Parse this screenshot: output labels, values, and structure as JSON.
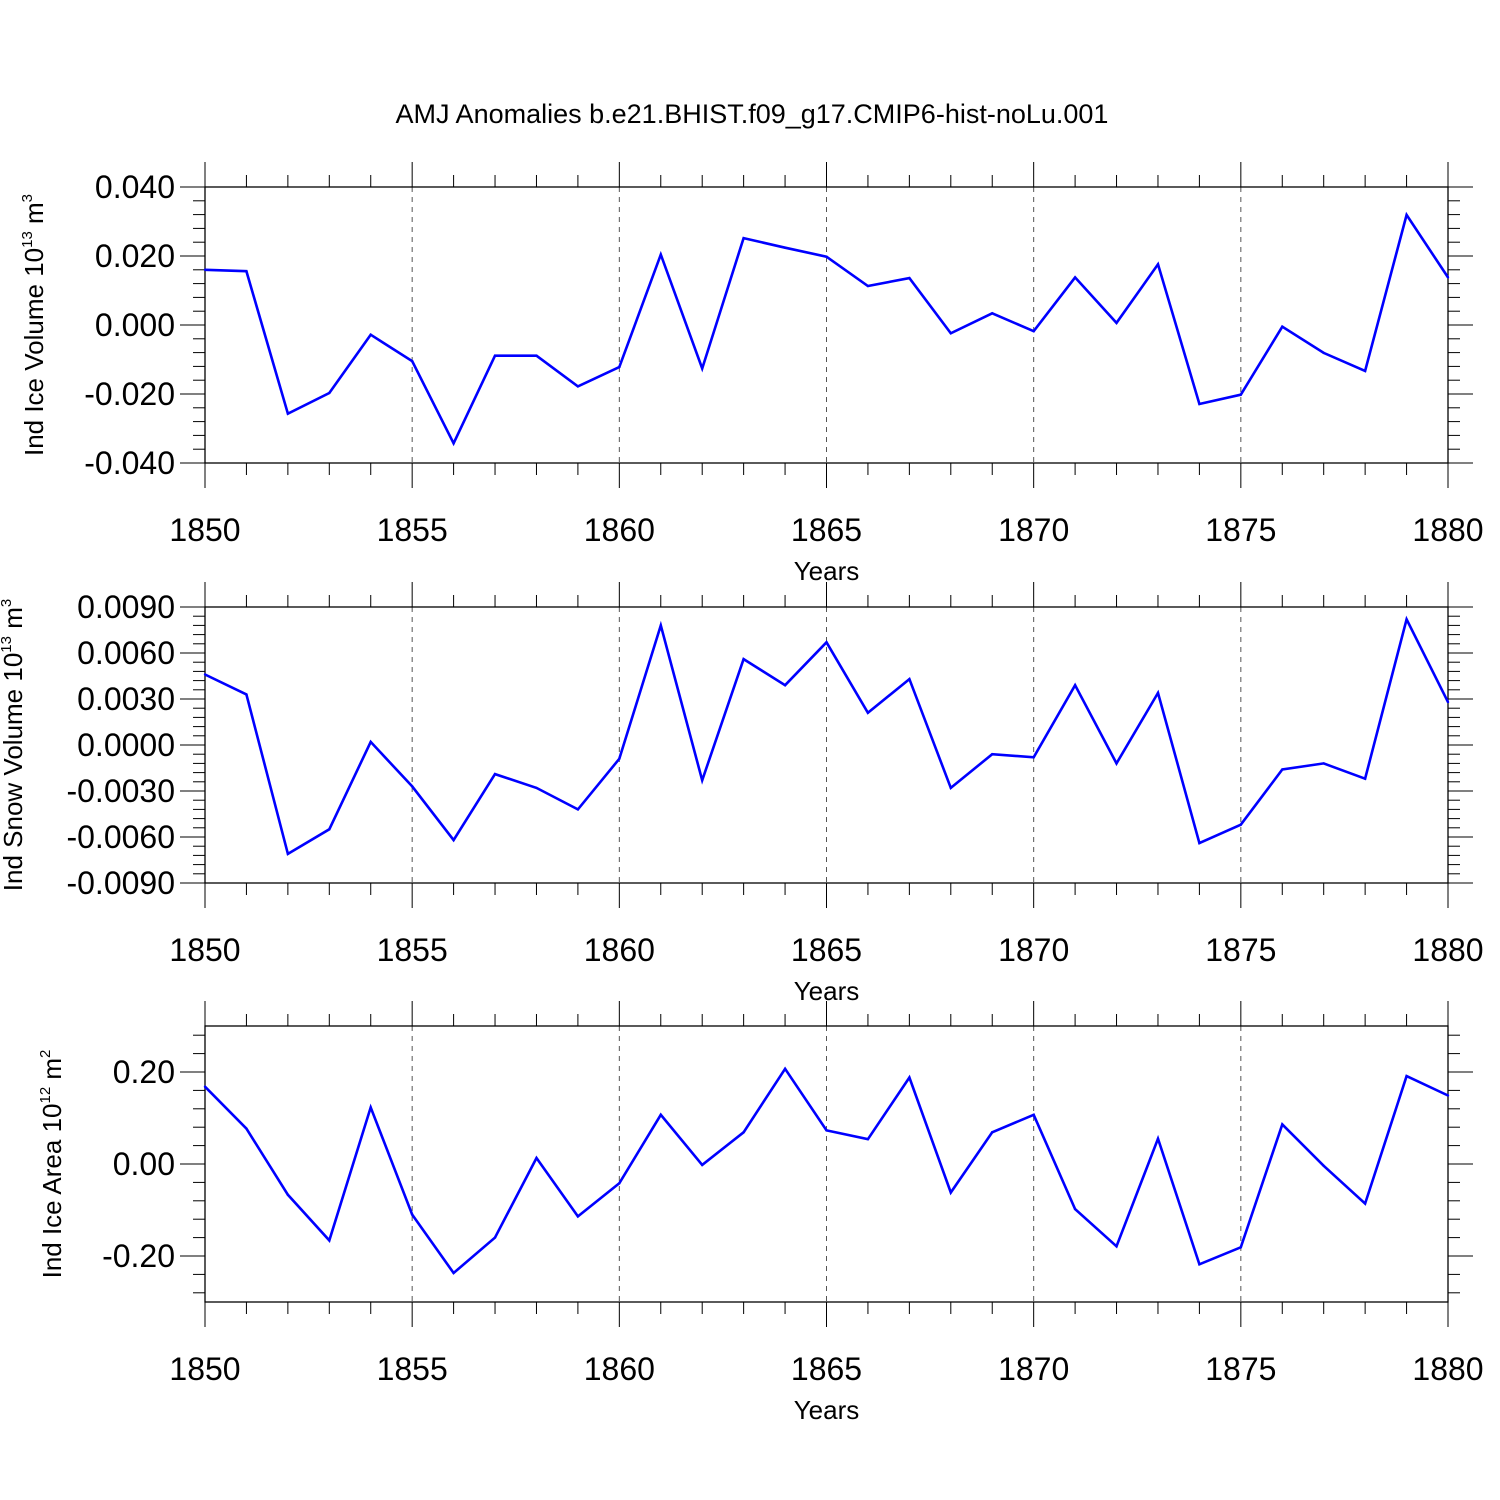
{
  "figure": {
    "title": "AMJ Anomalies b.e21.BHIST.f09_g17.CMIP6-hist-noLu.001"
  },
  "chart_data": [
    {
      "type": "line",
      "title": "",
      "xlabel": "Years",
      "ylabel_parts": [
        "Ind Ice Volume 10",
        "13",
        " m",
        "3"
      ],
      "xlim": [
        1850,
        1880
      ],
      "ylim": [
        -0.04,
        0.04
      ],
      "xticks": [
        "1850",
        "1855",
        "1860",
        "1865",
        "1870",
        "1875",
        "1880"
      ],
      "yticks": [
        {
          "value": 0.04,
          "label": "0.040"
        },
        {
          "value": 0.02,
          "label": "0.020"
        },
        {
          "value": 0.0,
          "label": "0.000"
        },
        {
          "value": -0.02,
          "label": "-0.020"
        },
        {
          "value": -0.04,
          "label": "-0.040"
        }
      ],
      "x": [
        1850,
        1851,
        1852,
        1853,
        1854,
        1855,
        1856,
        1857,
        1858,
        1859,
        1860,
        1861,
        1862,
        1863,
        1864,
        1865,
        1866,
        1867,
        1868,
        1869,
        1870,
        1871,
        1872,
        1873,
        1874,
        1875,
        1876,
        1877,
        1878,
        1879,
        1880
      ],
      "series": [
        {
          "name": "Ind Ice Volume",
          "color": "#0000ff",
          "values": [
            0.016,
            0.0156,
            -0.0257,
            -0.0197,
            -0.0028,
            -0.0105,
            -0.0343,
            -0.0089,
            -0.0089,
            -0.0178,
            -0.0122,
            0.0204,
            -0.0126,
            0.0252,
            0.0224,
            0.0198,
            0.0113,
            0.0136,
            -0.0024,
            0.0034,
            -0.0018,
            0.0138,
            0.0006,
            0.0176,
            -0.0229,
            -0.0202,
            -0.0005,
            -0.0081,
            -0.0133,
            0.0319,
            0.0138
          ]
        }
      ]
    },
    {
      "type": "line",
      "title": "",
      "xlabel": "Years",
      "ylabel_parts": [
        "Ind Snow Volume 10",
        "13",
        " m",
        "3"
      ],
      "xlim": [
        1850,
        1880
      ],
      "ylim": [
        -0.009,
        0.009
      ],
      "xticks": [
        "1850",
        "1855",
        "1860",
        "1865",
        "1870",
        "1875",
        "1880"
      ],
      "yticks": [
        {
          "value": 0.009,
          "label": "0.0090"
        },
        {
          "value": 0.006,
          "label": "0.0060"
        },
        {
          "value": 0.003,
          "label": "0.0030"
        },
        {
          "value": 0.0,
          "label": "0.0000"
        },
        {
          "value": -0.003,
          "label": "-0.0030"
        },
        {
          "value": -0.006,
          "label": "-0.0060"
        },
        {
          "value": -0.009,
          "label": "-0.0090"
        }
      ],
      "x": [
        1850,
        1851,
        1852,
        1853,
        1854,
        1855,
        1856,
        1857,
        1858,
        1859,
        1860,
        1861,
        1862,
        1863,
        1864,
        1865,
        1866,
        1867,
        1868,
        1869,
        1870,
        1871,
        1872,
        1873,
        1874,
        1875,
        1876,
        1877,
        1878,
        1879,
        1880
      ],
      "series": [
        {
          "name": "Ind Snow Volume",
          "color": "#0000ff",
          "values": [
            0.0046,
            0.0033,
            -0.0071,
            -0.0055,
            0.0002,
            -0.0027,
            -0.0062,
            -0.0019,
            -0.0028,
            -0.0042,
            -0.0009,
            0.0078,
            -0.0023,
            0.0056,
            0.0039,
            0.0067,
            0.0021,
            0.0043,
            -0.0028,
            -0.0006,
            -0.0008,
            0.0039,
            -0.0012,
            0.0034,
            -0.0064,
            -0.0052,
            -0.0016,
            -0.0012,
            -0.0022,
            0.0082,
            0.0028
          ]
        }
      ]
    },
    {
      "type": "line",
      "title": "",
      "xlabel": "Years",
      "ylabel_parts": [
        "Ind Ice Area 10",
        "12",
        " m",
        "2"
      ],
      "xlim": [
        1850,
        1880
      ],
      "ylim": [
        -0.3,
        0.3
      ],
      "xticks": [
        "1850",
        "1855",
        "1860",
        "1865",
        "1870",
        "1875",
        "1880"
      ],
      "yticks": [
        {
          "value": 0.2,
          "label": "0.20"
        },
        {
          "value": 0.0,
          "label": "0.00"
        },
        {
          "value": -0.2,
          "label": "-0.20"
        }
      ],
      "x": [
        1850,
        1851,
        1852,
        1853,
        1854,
        1855,
        1856,
        1857,
        1858,
        1859,
        1860,
        1861,
        1862,
        1863,
        1864,
        1865,
        1866,
        1867,
        1868,
        1869,
        1870,
        1871,
        1872,
        1873,
        1874,
        1875,
        1876,
        1877,
        1878,
        1879,
        1880
      ],
      "series": [
        {
          "name": "Ind Ice Area",
          "color": "#0000ff",
          "values": [
            0.168,
            0.077,
            -0.067,
            -0.166,
            0.123,
            -0.11,
            -0.237,
            -0.16,
            0.013,
            -0.114,
            -0.042,
            0.107,
            -0.002,
            0.069,
            0.207,
            0.073,
            0.054,
            0.188,
            -0.062,
            0.069,
            0.107,
            -0.098,
            -0.179,
            0.055,
            -0.218,
            -0.181,
            0.086,
            -0.004,
            -0.086,
            0.191,
            0.149
          ]
        }
      ]
    }
  ]
}
